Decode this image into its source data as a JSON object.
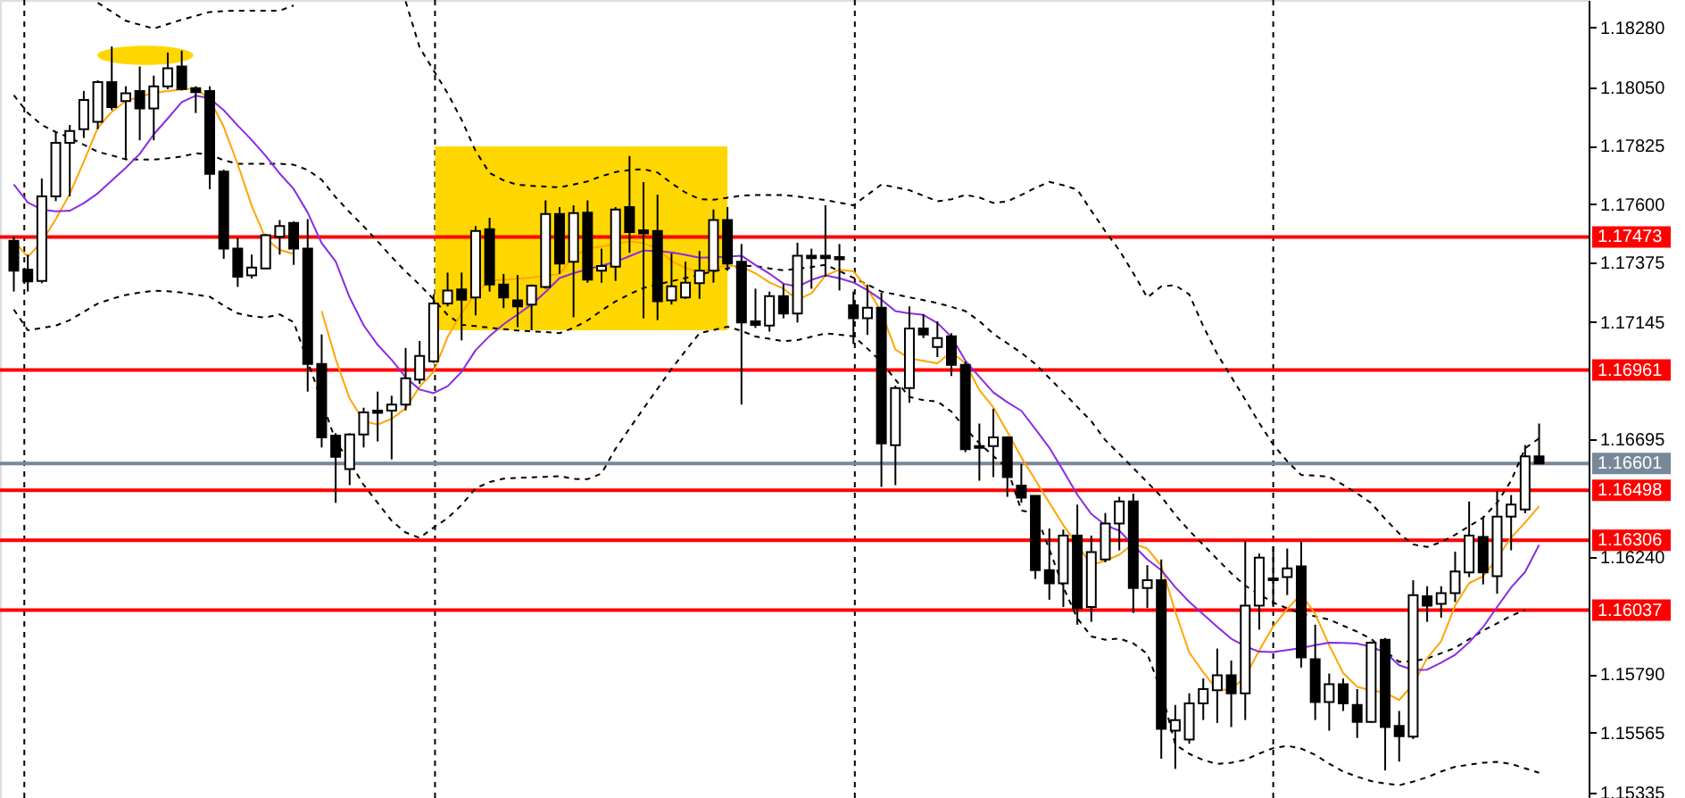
{
  "chart_data": {
    "type": "candlestick",
    "categories": [
      null,
      null,
      null,
      null,
      null,
      null,
      null,
      null,
      null,
      null,
      null,
      null,
      null,
      null,
      null,
      null,
      null,
      null,
      null,
      null,
      null,
      null,
      null,
      null,
      null,
      null,
      null,
      null,
      null,
      null,
      null,
      null,
      null,
      null,
      null,
      null,
      null,
      null,
      null,
      null,
      null,
      null,
      null,
      null,
      null,
      null,
      null,
      null,
      null,
      null,
      null,
      null,
      null,
      null,
      null,
      null,
      null,
      null,
      null,
      null,
      null,
      null,
      null,
      null,
      null,
      null,
      null,
      null,
      null,
      null,
      null,
      null,
      null,
      null,
      null,
      null,
      null,
      null,
      null,
      null,
      null,
      null,
      null,
      null,
      null,
      null,
      null,
      null,
      null,
      null,
      null,
      null,
      null,
      null,
      null,
      null,
      null,
      null,
      null,
      null,
      null,
      null,
      null,
      null,
      null,
      null,
      null,
      null,
      null,
      null
    ],
    "ohlc": [
      [
        1.17458,
        1.17474,
        1.17263,
        1.17343
      ],
      [
        1.17348,
        1.17405,
        1.17263,
        1.17302
      ],
      [
        1.17304,
        1.17698,
        1.17295,
        1.17629
      ],
      [
        1.17629,
        1.17877,
        1.17611,
        1.17835
      ],
      [
        1.17835,
        1.17904,
        1.17629,
        1.17881
      ],
      [
        1.17888,
        1.18035,
        1.17854,
        1.18
      ],
      [
        1.17916,
        1.18076,
        1.17888,
        1.18069
      ],
      [
        1.18069,
        1.18206,
        1.17961,
        1.17973
      ],
      [
        1.17996,
        1.18053,
        1.17771,
        1.18026
      ],
      [
        1.18035,
        1.18129,
        1.17845,
        1.17968
      ],
      [
        1.17968,
        1.18094,
        1.17845,
        1.18053
      ],
      [
        1.18053,
        1.18183,
        1.18042,
        1.18122
      ],
      [
        1.18129,
        1.1819,
        1.18037,
        1.18042
      ],
      [
        1.18046,
        1.18053,
        1.1795,
        1.1803
      ],
      [
        1.18035,
        1.18053,
        1.17657,
        1.17716
      ],
      [
        1.17725,
        1.17732,
        1.17389,
        1.17428
      ],
      [
        1.17428,
        1.17469,
        1.17281,
        1.1732
      ],
      [
        1.17325,
        1.17405,
        1.17313,
        1.17355
      ],
      [
        1.17352,
        1.17485,
        1.17352,
        1.1748
      ],
      [
        1.17474,
        1.17538,
        1.17405,
        1.17515
      ],
      [
        1.17527,
        1.17533,
        1.17366,
        1.17428
      ],
      [
        1.17428,
        1.17542,
        1.16878,
        1.16984
      ],
      [
        1.16984,
        1.17098,
        1.16663,
        1.16702
      ],
      [
        1.16709,
        1.16718,
        1.1645,
        1.16627
      ],
      [
        1.1658,
        1.16718,
        1.16518,
        1.16713
      ],
      [
        1.16713,
        1.16816,
        1.16663,
        1.16798
      ],
      [
        1.16805,
        1.16878,
        1.16686,
        1.16796
      ],
      [
        1.16805,
        1.16862,
        1.16617,
        1.16828
      ],
      [
        1.16828,
        1.17046,
        1.16805,
        1.16929
      ],
      [
        1.16924,
        1.17073,
        1.16908,
        1.17015
      ],
      [
        1.16995,
        1.17252,
        1.16988,
        1.17217
      ],
      [
        1.17217,
        1.17336,
        1.17206,
        1.17267
      ],
      [
        1.17271,
        1.17336,
        1.17075,
        1.17232
      ],
      [
        1.1724,
        1.17515,
        1.17171,
        1.17496
      ],
      [
        1.17503,
        1.17547,
        1.17263,
        1.1729
      ],
      [
        1.1729,
        1.17331,
        1.17199,
        1.1724
      ],
      [
        1.17229,
        1.17327,
        1.17126,
        1.17206
      ],
      [
        1.17213,
        1.1729,
        1.17114,
        1.17286
      ],
      [
        1.17281,
        1.17614,
        1.17274,
        1.17561
      ],
      [
        1.17561,
        1.17588,
        1.17331,
        1.17371
      ],
      [
        1.17378,
        1.17595,
        1.17164,
        1.17565
      ],
      [
        1.17567,
        1.17614,
        1.17297,
        1.17309
      ],
      [
        1.17343,
        1.17428,
        1.17297,
        1.17361
      ],
      [
        1.17359,
        1.17588,
        1.17304,
        1.17579
      ],
      [
        1.17588,
        1.17785,
        1.17412,
        1.17492
      ],
      [
        1.17499,
        1.17684,
        1.1716,
        1.17487
      ],
      [
        1.17496,
        1.17636,
        1.17153,
        1.17226
      ],
      [
        1.17229,
        1.1741,
        1.17213,
        1.17283
      ],
      [
        1.1724,
        1.17378,
        1.17235,
        1.17297
      ],
      [
        1.17295,
        1.17419,
        1.17235,
        1.17343
      ],
      [
        1.17343,
        1.17579,
        1.17297,
        1.17538
      ],
      [
        1.17538,
        1.17588,
        1.17343,
        1.17371
      ],
      [
        1.17378,
        1.17446,
        1.16828,
        1.17144
      ],
      [
        1.17148,
        1.17274,
        1.17123,
        1.17135
      ],
      [
        1.17132,
        1.17263,
        1.17109,
        1.17245
      ],
      [
        1.17245,
        1.17292,
        1.1716,
        1.17178
      ],
      [
        1.17178,
        1.17451,
        1.17144,
        1.17401
      ],
      [
        1.17401,
        1.17428,
        1.17274,
        1.17391
      ],
      [
        1.17401,
        1.17595,
        1.1732,
        1.17391
      ],
      [
        1.17396,
        1.17446,
        1.17267,
        1.17387
      ],
      [
        1.1721,
        1.17263,
        1.17061,
        1.1716
      ],
      [
        1.1716,
        1.1729,
        1.17096,
        1.17201
      ],
      [
        1.17201,
        1.17258,
        1.16511,
        1.16679
      ],
      [
        1.16672,
        1.16901,
        1.16518,
        1.16892
      ],
      [
        1.16892,
        1.17206,
        1.16835,
        1.17121
      ],
      [
        1.17121,
        1.17176,
        1.17084,
        1.17098
      ],
      [
        1.1705,
        1.17148,
        1.17011,
        1.17084
      ],
      [
        1.17091,
        1.17103,
        1.16938,
        1.16981
      ],
      [
        1.16981,
        1.16993,
        1.16645,
        1.16656
      ],
      [
        1.16668,
        1.16755,
        1.16535,
        1.16661
      ],
      [
        1.16668,
        1.16812,
        1.16549,
        1.16702
      ],
      [
        1.16702,
        1.16706,
        1.16473,
        1.16549
      ],
      [
        1.16516,
        1.16599,
        1.1645,
        1.1647
      ],
      [
        1.16477,
        1.16477,
        1.16157,
        1.16191
      ],
      [
        1.16191,
        1.16351,
        1.16077,
        1.1614
      ],
      [
        1.1614,
        1.16347,
        1.16049,
        1.16324
      ],
      [
        1.16324,
        1.16443,
        1.15981,
        1.16045
      ],
      [
        1.16049,
        1.16324,
        1.15992,
        1.1626
      ],
      [
        1.16232,
        1.16411,
        1.16221,
        1.1637
      ],
      [
        1.1637,
        1.16473,
        1.16267,
        1.16455
      ],
      [
        1.16455,
        1.16485,
        1.16026,
        1.16122
      ],
      [
        1.16122,
        1.1621,
        1.16045,
        1.16152
      ],
      [
        1.16152,
        1.16232,
        1.15465,
        1.1558
      ],
      [
        1.15573,
        1.15672,
        1.15426,
        1.15614
      ],
      [
        1.15539,
        1.15717,
        1.15523,
        1.15678
      ],
      [
        1.15678,
        1.15774,
        1.15614,
        1.15733
      ],
      [
        1.15729,
        1.15889,
        1.15603,
        1.15786
      ],
      [
        1.15786,
        1.15843,
        1.15587,
        1.15717
      ],
      [
        1.15717,
        1.16301,
        1.15614,
        1.16054
      ],
      [
        1.16054,
        1.16255,
        1.15962,
        1.16239
      ],
      [
        1.16159,
        1.16283,
        1.16049,
        1.16152
      ],
      [
        1.16164,
        1.16274,
        1.16095,
        1.16198
      ],
      [
        1.16205,
        1.16301,
        1.15816,
        1.15855
      ],
      [
        1.15848,
        1.15981,
        1.15614,
        1.15683
      ],
      [
        1.15683,
        1.15793,
        1.15573,
        1.15752
      ],
      [
        1.15752,
        1.15774,
        1.15649,
        1.15678
      ],
      [
        1.15672,
        1.15733,
        1.15545,
        1.15607
      ],
      [
        1.15607,
        1.15916,
        1.15603,
        1.15912
      ],
      [
        1.15923,
        1.1593,
        1.1542,
        1.15587
      ],
      [
        1.15591,
        1.15649,
        1.15454,
        1.15552
      ],
      [
        1.1555,
        1.16152,
        1.15541,
        1.16095
      ],
      [
        1.1609,
        1.16129,
        1.15992,
        1.16054
      ],
      [
        1.16061,
        1.16129,
        1.16008,
        1.16102
      ],
      [
        1.16102,
        1.16262,
        1.16068,
        1.16186
      ],
      [
        1.16182,
        1.16455,
        1.16164,
        1.16324
      ],
      [
        1.16319,
        1.16397,
        1.16136,
        1.16182
      ],
      [
        1.16168,
        1.16496,
        1.161,
        1.16397
      ],
      [
        1.16397,
        1.1648,
        1.16267,
        1.16443
      ],
      [
        1.16424,
        1.16672,
        1.1641,
        1.16629
      ],
      [
        1.16629,
        1.16755,
        1.166,
        1.16601
      ]
    ],
    "series": [
      {
        "type": "line",
        "color": "#000000",
        "line_style": "dashed",
        "values": [
          null,
          null,
          null,
          null,
          null,
          null,
          1.18374,
          1.1834,
          1.18305,
          1.1829,
          1.18275,
          1.18292,
          1.18309,
          1.18324,
          1.18339,
          1.18342,
          1.18344,
          1.18344,
          1.18344,
          1.18344,
          1.18364,
          null,
          null,
          null,
          null,
          null,
          null,
          null,
          1.1838,
          1.18202,
          1.18114,
          1.18026,
          1.17924,
          1.17804,
          1.17719,
          1.17691,
          1.17674,
          1.1767,
          1.17667,
          1.17664,
          1.17675,
          1.17687,
          1.17707,
          1.17723,
          1.17731,
          1.17734,
          1.17721,
          1.1768,
          1.17644,
          1.17619,
          1.17616,
          1.17624,
          1.17632,
          1.17634,
          1.17634,
          1.17634,
          1.17629,
          1.17622,
          1.17615,
          1.17605,
          1.17595,
          1.17635,
          1.17675,
          1.17664,
          1.17653,
          1.17632,
          1.1761,
          1.17618,
          1.17635,
          1.17625,
          1.17604,
          1.1761,
          1.17635,
          1.17662,
          1.17685,
          1.17672,
          1.17655,
          1.17574,
          1.17495,
          1.17422,
          1.17334,
          1.1724,
          1.17283,
          1.17287,
          1.17252,
          1.1713,
          1.17022,
          1.16935,
          1.16847,
          1.16757,
          1.16674,
          1.1661,
          1.16557,
          1.16555,
          1.1655,
          1.16519,
          1.16486,
          1.16449,
          1.16388,
          1.16332,
          1.1629,
          1.1628,
          1.16299,
          1.16327,
          1.1636,
          1.16393,
          1.1645,
          1.16535,
          1.1666,
          1.16698
        ]
      },
      {
        "type": "line",
        "color": "#000000",
        "line_style": "dashed",
        "values": [
          1.18019,
          1.1795,
          1.17904,
          1.17877,
          1.17855,
          1.17828,
          1.17801,
          1.17787,
          1.17772,
          1.17771,
          1.17771,
          1.17776,
          1.17783,
          1.17795,
          1.17791,
          1.17768,
          1.17755,
          1.17755,
          1.17755,
          1.17755,
          1.17751,
          1.17731,
          1.17693,
          1.17626,
          1.17568,
          1.17514,
          1.17456,
          1.17396,
          1.1734,
          1.17289,
          1.17233,
          1.17173,
          1.17135,
          1.1713,
          1.17124,
          1.17118,
          1.17113,
          1.1711,
          1.17107,
          1.17103,
          1.17123,
          1.17152,
          1.1719,
          1.17225,
          1.17253,
          1.17277,
          1.1729,
          1.17303,
          1.17315,
          1.17328,
          1.17341,
          1.17352,
          1.17363,
          1.17361,
          1.17352,
          1.17345,
          1.17351,
          1.17357,
          1.17366,
          1.17342,
          1.17316,
          1.1729,
          1.17263,
          1.17252,
          1.17241,
          1.1723,
          1.17219,
          1.17204,
          1.17188,
          1.17149,
          1.171,
          1.17064,
          1.17027,
          1.16984,
          1.1693,
          1.16875,
          1.16819,
          1.16764,
          1.16691,
          1.16638,
          1.16584,
          1.16529,
          1.16474,
          1.16403,
          1.16343,
          1.16288,
          1.16233,
          1.16179,
          1.16131,
          1.16098,
          1.16066,
          1.16044,
          1.16024,
          1.16013,
          1.16001,
          1.15977,
          1.15954,
          1.15926,
          1.15879,
          1.15838,
          1.15841,
          1.15851,
          1.15871,
          1.15892,
          1.15925,
          1.15958,
          1.15986,
          1.16015,
          1.16038,
          null
        ]
      },
      {
        "type": "line",
        "color": "#000000",
        "line_style": "dashed",
        "values": [
          1.17194,
          1.17114,
          1.17123,
          1.17132,
          1.17153,
          1.17185,
          1.17217,
          1.17235,
          1.1725,
          1.17259,
          1.17266,
          1.17264,
          1.17259,
          1.17251,
          1.17243,
          1.17209,
          1.17179,
          1.17168,
          1.17163,
          1.17175,
          1.17145,
          1.16994,
          1.16843,
          1.16688,
          1.16608,
          1.16519,
          1.1645,
          1.16381,
          1.16336,
          1.16315,
          1.16355,
          1.16391,
          1.16442,
          1.16506,
          1.1653,
          1.16543,
          1.16546,
          1.16548,
          1.1655,
          1.16553,
          1.16542,
          1.16541,
          1.16563,
          1.16658,
          1.16736,
          1.16813,
          1.16889,
          1.16965,
          1.17035,
          1.17103,
          1.17115,
          1.17128,
          1.17112,
          1.1709,
          1.17081,
          1.17072,
          1.17076,
          1.17089,
          1.17102,
          1.17097,
          1.17091,
          1.17044,
          1.16991,
          1.16924,
          1.16857,
          1.16845,
          1.1684,
          1.16801,
          1.16736,
          1.16679,
          1.1663,
          1.16582,
          1.1642,
          1.16411,
          1.16271,
          1.16125,
          1.16006,
          1.15936,
          1.15923,
          1.15928,
          1.15909,
          1.15869,
          1.15725,
          1.1552,
          1.15484,
          1.1546,
          1.15445,
          1.1545,
          1.15461,
          1.15485,
          1.15506,
          1.15515,
          1.15504,
          1.1548,
          1.15446,
          1.15416,
          1.15396,
          1.15379,
          1.1537,
          1.15363,
          1.15377,
          1.15394,
          1.15416,
          1.15434,
          1.15442,
          1.1545,
          1.15453,
          1.15445,
          1.15428,
          1.15411
        ]
      },
      {
        "type": "line",
        "color": "#ffa500",
        "line_style": "solid",
        "values": [
          1.17458,
          1.17396,
          1.17455,
          1.17542,
          1.17639,
          1.17763,
          1.17893,
          1.17955,
          1.17996,
          1.18013,
          1.18027,
          1.18035,
          1.18041,
          1.18045,
          1.18002,
          1.17897,
          1.17753,
          1.17593,
          1.17467,
          1.17423,
          1.17408,
          null,
          1.17188,
          1.17003,
          1.16851,
          1.16765,
          1.16751,
          1.16773,
          1.16814,
          1.16897,
          1.16954,
          1.17089,
          1.1718,
          1.17257,
          1.17305,
          1.17308,
          1.17312,
          1.17317,
          1.17324,
          1.1733,
          1.174,
          1.17428,
          1.17436,
          1.17446,
          1.17456,
          1.1745,
          1.17426,
          1.1738,
          1.17354,
          1.17336,
          1.17353,
          1.17363,
          1.17359,
          1.17333,
          1.17298,
          1.17274,
          1.17232,
          1.17256,
          1.17325,
          1.17347,
          1.17341,
          1.17275,
          1.17184,
          1.1704,
          1.17006,
          1.16996,
          1.16987,
          1.17031,
          1.16987,
          1.16884,
          1.16817,
          1.16723,
          1.16625,
          1.16538,
          1.1645,
          1.16364,
          1.16289,
          1.16211,
          1.16227,
          1.1625,
          1.16292,
          1.16274,
          1.16208,
          1.16032,
          1.15874,
          1.15798,
          1.1573,
          1.15731,
          1.15781,
          1.15882,
          1.15974,
          1.16042,
          1.16098,
          1.16022,
          1.15902,
          1.15795,
          1.15742,
          1.15728,
          1.1572,
          1.15691,
          1.15751,
          1.15852,
          1.15917,
          1.16055,
          1.16141,
          1.16167,
          1.16237,
          1.16316,
          1.16374,
          1.16437
        ]
      },
      {
        "type": "line",
        "color": "#8a2be2",
        "line_style": "solid",
        "values": [
          1.17675,
          1.17606,
          1.17579,
          1.17572,
          1.17574,
          1.17603,
          1.17641,
          1.1769,
          1.17739,
          1.17793,
          1.17868,
          1.17929,
          1.17992,
          1.18017,
          1.18006,
          1.17961,
          1.17902,
          1.17846,
          1.17785,
          1.17717,
          1.17658,
          1.17567,
          1.17449,
          1.17379,
          1.1724,
          1.17133,
          1.17058,
          1.17,
          1.16933,
          1.16886,
          1.16872,
          1.16899,
          1.16954,
          1.17037,
          1.17092,
          1.17137,
          1.17175,
          1.17213,
          1.17262,
          1.17315,
          1.17334,
          1.17349,
          1.17363,
          1.17377,
          1.17399,
          1.17421,
          1.17419,
          1.17414,
          1.17404,
          1.17393,
          1.17395,
          1.17397,
          1.17401,
          1.17365,
          1.17332,
          1.17293,
          1.17282,
          1.17308,
          1.17325,
          1.17314,
          1.17298,
          1.17268,
          1.17232,
          1.17188,
          1.17179,
          1.17173,
          1.17142,
          1.17089,
          1.16997,
          1.16935,
          1.16875,
          1.16837,
          1.16804,
          1.16734,
          1.16662,
          1.16573,
          1.16481,
          1.16407,
          1.16364,
          1.16343,
          1.16287,
          1.16232,
          1.16191,
          1.16125,
          1.16069,
          1.16021,
          1.15973,
          1.15927,
          1.15898,
          1.15877,
          1.15876,
          1.15883,
          1.15891,
          1.15902,
          1.15912,
          1.15911,
          1.15908,
          1.15896,
          1.15874,
          1.15825,
          1.15807,
          1.15808,
          1.15835,
          1.15865,
          1.15913,
          1.15972,
          1.16049,
          1.16124,
          1.16184,
          1.16288
        ]
      }
    ],
    "ylim": [
      1.15314,
      1.18385
    ],
    "yticks": [
      {
        "value": 1.1828,
        "label": "1.18280"
      },
      {
        "value": 1.1805,
        "label": "1.18050"
      },
      1.17825,
      {
        "value": 1.176,
        "label": "1.17600"
      },
      1.17375,
      1.17145,
      1.16695,
      {
        "value": 1.1624,
        "label": "1.16240"
      },
      {
        "value": 1.1579,
        "label": "1.15790"
      },
      1.15565,
      1.15335
    ],
    "tick_labels": "y",
    "ref_lines": [
      {
        "axis": "y",
        "value": 1.17473,
        "label": "1.17473",
        "color": "#ff0000"
      },
      {
        "axis": "y",
        "value": 1.16961,
        "label": "1.16961",
        "color": "#ff0000"
      },
      {
        "axis": "y",
        "value": 1.16601,
        "label": "1.16601",
        "color": "#778899"
      },
      {
        "axis": "y",
        "value": 1.16498,
        "label": "1.16498",
        "color": "#ff0000"
      },
      {
        "axis": "y",
        "value": 1.16306,
        "label": "1.16306",
        "color": "#ff0000"
      },
      {
        "axis": "y",
        "value": 1.16037,
        "label": "1.16037",
        "color": "#ff0000"
      }
    ]
  }
}
